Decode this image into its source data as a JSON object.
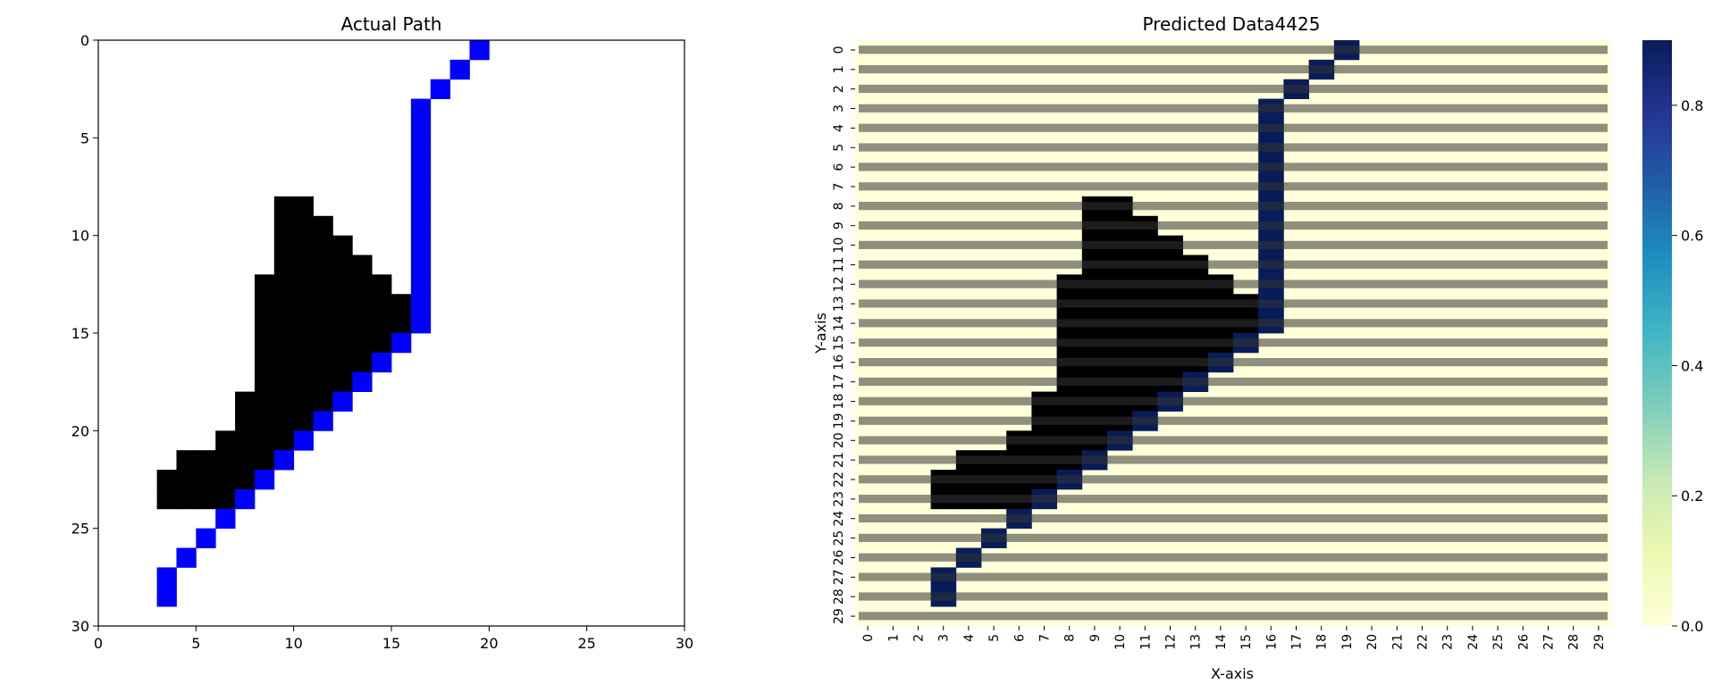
{
  "chart_data": [
    {
      "type": "heatmap",
      "title": "Actual Path",
      "xlabel": "",
      "ylabel": "",
      "xlim": [
        0,
        30
      ],
      "ylim": [
        30,
        0
      ],
      "xticks": [
        "0",
        "5",
        "10",
        "15",
        "20",
        "25",
        "30"
      ],
      "yticks": [
        "0",
        "5",
        "10",
        "15",
        "20",
        "25",
        "30"
      ],
      "grid_size": 30,
      "legend": "none",
      "colors": {
        "obstacle": "#000000",
        "path": "#0000ff",
        "free": "#ffffff"
      },
      "obstacle_rows": [
        {
          "y": 8,
          "x_ranges": [
            [
              9,
              10
            ]
          ]
        },
        {
          "y": 9,
          "x_ranges": [
            [
              9,
              11
            ]
          ]
        },
        {
          "y": 10,
          "x_ranges": [
            [
              9,
              12
            ]
          ]
        },
        {
          "y": 11,
          "x_ranges": [
            [
              9,
              13
            ]
          ]
        },
        {
          "y": 12,
          "x_ranges": [
            [
              8,
              14
            ]
          ]
        },
        {
          "y": 13,
          "x_ranges": [
            [
              8,
              15
            ]
          ]
        },
        {
          "y": 14,
          "x_ranges": [
            [
              8,
              15
            ]
          ]
        },
        {
          "y": 15,
          "x_ranges": [
            [
              8,
              14
            ]
          ]
        },
        {
          "y": 16,
          "x_ranges": [
            [
              8,
              13
            ]
          ]
        },
        {
          "y": 17,
          "x_ranges": [
            [
              8,
              12
            ]
          ]
        },
        {
          "y": 18,
          "x_ranges": [
            [
              7,
              11
            ]
          ]
        },
        {
          "y": 19,
          "x_ranges": [
            [
              7,
              10
            ]
          ]
        },
        {
          "y": 20,
          "x_ranges": [
            [
              6,
              9
            ]
          ]
        },
        {
          "y": 21,
          "x_ranges": [
            [
              4,
              8
            ]
          ]
        },
        {
          "y": 22,
          "x_ranges": [
            [
              3,
              7
            ]
          ]
        },
        {
          "y": 23,
          "x_ranges": [
            [
              3,
              6
            ]
          ]
        }
      ],
      "path": [
        [
          19,
          0
        ],
        [
          18,
          1
        ],
        [
          17,
          2
        ],
        [
          16,
          3
        ],
        [
          16,
          4
        ],
        [
          16,
          5
        ],
        [
          16,
          6
        ],
        [
          16,
          7
        ],
        [
          16,
          8
        ],
        [
          16,
          9
        ],
        [
          16,
          10
        ],
        [
          16,
          11
        ],
        [
          16,
          12
        ],
        [
          16,
          13
        ],
        [
          16,
          14
        ],
        [
          15,
          15
        ],
        [
          14,
          16
        ],
        [
          13,
          17
        ],
        [
          12,
          18
        ],
        [
          11,
          19
        ],
        [
          10,
          20
        ],
        [
          9,
          21
        ],
        [
          8,
          22
        ],
        [
          7,
          23
        ],
        [
          6,
          24
        ],
        [
          5,
          25
        ],
        [
          4,
          26
        ],
        [
          3,
          27
        ],
        [
          3,
          28
        ]
      ]
    },
    {
      "type": "heatmap",
      "title": "Predicted Data4425",
      "xlabel": "X-axis",
      "ylabel": "Y-axis",
      "xticks": [
        "0",
        "1",
        "2",
        "3",
        "4",
        "5",
        "6",
        "7",
        "8",
        "9",
        "10",
        "11",
        "12",
        "13",
        "14",
        "15",
        "16",
        "17",
        "18",
        "19",
        "20",
        "21",
        "22",
        "23",
        "24",
        "25",
        "26",
        "27",
        "28",
        "29"
      ],
      "yticks": [
        "0",
        "1",
        "2",
        "3",
        "4",
        "5",
        "6",
        "7",
        "8",
        "9",
        "10",
        "11",
        "12",
        "13",
        "14",
        "15",
        "16",
        "17",
        "18",
        "19",
        "20",
        "21",
        "22",
        "23",
        "24",
        "25",
        "26",
        "27",
        "28",
        "29"
      ],
      "colormap": "YlGnBu",
      "colorbar": {
        "min": 0.0,
        "max": 0.9,
        "ticks": [
          "0.0",
          "0.2",
          "0.4",
          "0.6",
          "0.8"
        ],
        "tick_values": [
          0.0,
          0.2,
          0.4,
          0.6,
          0.8
        ],
        "placement": "right"
      },
      "cell_annotations": "values printed in every cell, illegibly overlapping",
      "high_cells_value": 0.9,
      "high_cells": [
        [
          19,
          0
        ],
        [
          18,
          1
        ],
        [
          17,
          2
        ],
        [
          16,
          3
        ],
        [
          16,
          4
        ],
        [
          16,
          5
        ],
        [
          16,
          6
        ],
        [
          16,
          7
        ],
        [
          16,
          8
        ],
        [
          16,
          9
        ],
        [
          16,
          10
        ],
        [
          16,
          11
        ],
        [
          16,
          12
        ],
        [
          16,
          13
        ],
        [
          16,
          14
        ],
        [
          15,
          15
        ],
        [
          14,
          16
        ],
        [
          13,
          17
        ],
        [
          12,
          18
        ],
        [
          11,
          19
        ],
        [
          10,
          20
        ],
        [
          9,
          21
        ],
        [
          8,
          22
        ],
        [
          7,
          23
        ],
        [
          6,
          24
        ],
        [
          5,
          25
        ],
        [
          4,
          26
        ],
        [
          3,
          27
        ],
        [
          3,
          28
        ]
      ],
      "low_cells_value": 0.0,
      "background_value": 0.0,
      "overlay_obstacles": "same obstacle shape as Actual Path, drawn black"
    }
  ]
}
